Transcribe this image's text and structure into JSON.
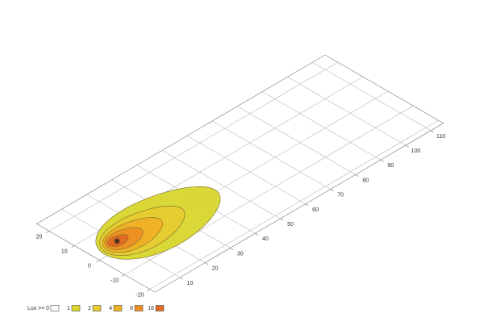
{
  "chart_data": {
    "type": "isolux",
    "xlim": [
      0,
      115
    ],
    "ylim": [
      -22,
      25
    ],
    "xticks": [
      10,
      20,
      30,
      40,
      50,
      60,
      70,
      80,
      90,
      100,
      110
    ],
    "yticks": [
      20,
      10,
      0,
      -10,
      -20
    ],
    "grid": true,
    "lamp": {
      "x": 10,
      "y": 3
    },
    "contours": [
      {
        "level": 1,
        "x": [
          3,
          47
        ],
        "y_center": 1,
        "half_width": 13,
        "color": "#d8d62c"
      },
      {
        "level": 2,
        "x": [
          4,
          34
        ],
        "y_center": 1.5,
        "half_width": 9,
        "color": "#e6cc30"
      },
      {
        "level": 4,
        "x": [
          5,
          26
        ],
        "y_center": 2,
        "half_width": 6.5,
        "color": "#efb024"
      },
      {
        "level": 8,
        "x": [
          6,
          19
        ],
        "y_center": 2.5,
        "half_width": 4.5,
        "color": "#ec8f24"
      },
      {
        "level": 16,
        "x": [
          7,
          14
        ],
        "y_center": 3,
        "half_width": 2.5,
        "color": "#e06a22"
      }
    ],
    "legend": {
      "title": "Lux >=",
      "entries": [
        {
          "label": "0",
          "color": "#ffffff"
        },
        {
          "label": "1",
          "color": "#d8d62c"
        },
        {
          "label": "2",
          "color": "#e6cc30"
        },
        {
          "label": "4",
          "color": "#efb024"
        },
        {
          "label": "8",
          "color": "#ec8f24"
        },
        {
          "label": "16",
          "color": "#e06a22"
        }
      ]
    }
  }
}
